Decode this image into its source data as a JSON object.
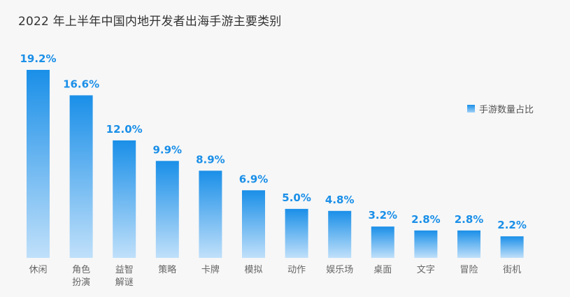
{
  "chart_data": {
    "type": "bar",
    "title": "2022 年上半年中国内地开发者出海手游主要类别",
    "categories": [
      "休闲",
      "角色\n扮演",
      "益智\n解谜",
      "策略",
      "卡牌",
      "模拟",
      "动作",
      "娱乐场",
      "桌面",
      "文字",
      "冒险",
      "街机"
    ],
    "series": [
      {
        "name": "手游数量占比",
        "values": [
          19.2,
          16.6,
          12.0,
          9.9,
          8.9,
          6.9,
          5.0,
          4.8,
          3.2,
          2.8,
          2.8,
          2.2
        ],
        "data_labels": [
          "19.2%",
          "16.6%",
          "12.0%",
          "9.9%",
          "8.9%",
          "6.9%",
          "5.0%",
          "4.8%",
          "3.2%",
          "2.8%",
          "2.8%",
          "2.2%"
        ]
      }
    ],
    "xlabel": "",
    "ylabel": "",
    "ylim": [
      0,
      19.2
    ],
    "grid": false,
    "legend_position": "right",
    "colors": {
      "bar_top": "#1a8fe8",
      "bar_bottom": "#c0e0fa",
      "label": "#1a8fe8",
      "axis_text": "#666666"
    }
  }
}
